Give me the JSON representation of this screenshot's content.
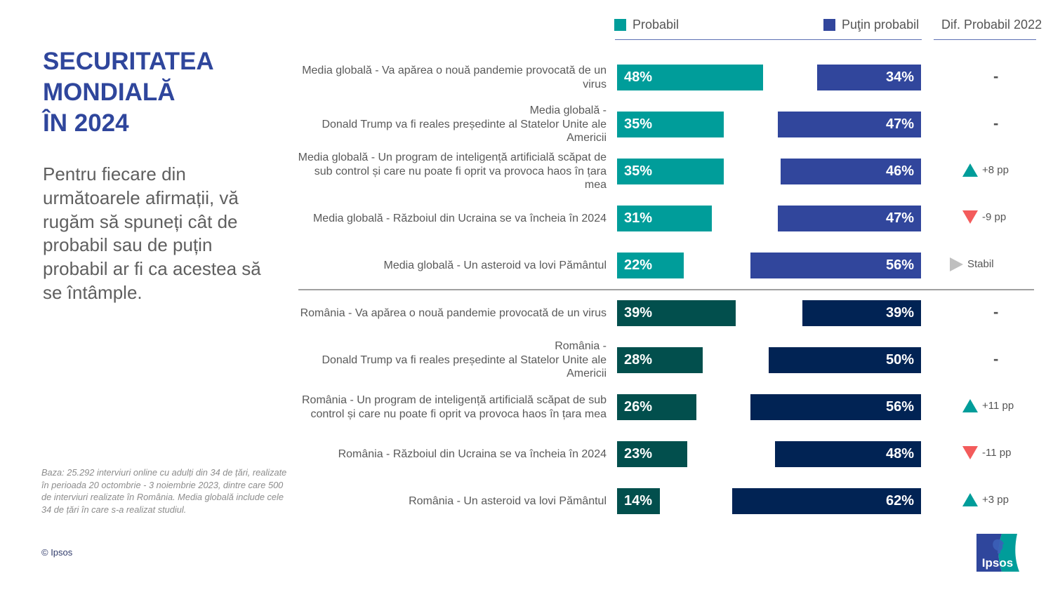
{
  "title": "SECURITATEA\nMONDIALĂ\nÎN 2024",
  "subtitle": "Pentru fiecare din următoarele afirmații, vă rugăm să spuneți cât de probabil sau de puțin probabil ar fi ca acestea să se întâmple.",
  "base_note": "Baza: 25.292 interviuri online cu adulți din 34 de țări, realizate în perioada 20 octombrie - 3 noiembrie 2023, dintre care 500 de interviuri realizate în România. Media globală include cele 34 de țări în care s-a realizat studiul.",
  "copyright": "© Ipsos",
  "logo_text": "Ipsos",
  "colors": {
    "title": "#2f469c",
    "global_likely": "#009d9a",
    "global_unlikely": "#31469c",
    "romania_likely": "#024f4d",
    "romania_unlikely": "#012354",
    "up": "#009d9a",
    "down": "#f35b5b",
    "stable": "#bfbfbf"
  },
  "chart_data": {
    "type": "bar",
    "orientation": "horizontal",
    "legend": [
      "Probabil",
      "Puţin probabil"
    ],
    "diff_header": "Dif. Probabil 2022",
    "legend_position": "top",
    "unit": "%",
    "categories": [
      "Media globală - Va apărea o nouă pandemie provocată de un virus",
      "Media globală -\nDonald Trump va fi reales președinte al Statelor Unite ale Americii",
      "Media globală - Un program de inteligență artificială scăpat de sub control și care nu poate fi oprit va provoca haos în țara mea",
      "Media globală - Războiul din Ucraina se va încheia în 2024",
      "Media globală - Un asteroid va lovi Pământul",
      "România - Va apărea o nouă pandemie provocată de un virus",
      "România -\nDonald Trump va fi reales președinte al Statelor Unite ale Americii",
      "România - Un program de inteligență artificială scăpat de sub control și care nu poate fi oprit va provoca haos în țara mea",
      "România - Războiul din Ucraina se va încheia în  2024",
      "România - Un asteroid va lovi Pământul"
    ],
    "groups": [
      "global",
      "global",
      "global",
      "global",
      "global",
      "romania",
      "romania",
      "romania",
      "romania",
      "romania"
    ],
    "series": [
      {
        "name": "Probabil",
        "values": [
          48,
          35,
          35,
          31,
          22,
          39,
          28,
          26,
          23,
          14
        ]
      },
      {
        "name": "Puţin probabil",
        "values": [
          34,
          47,
          46,
          47,
          56,
          39,
          50,
          56,
          48,
          62
        ]
      }
    ],
    "diff_2022": [
      {
        "type": "none",
        "label": "-"
      },
      {
        "type": "none",
        "label": "-"
      },
      {
        "type": "up",
        "label": "+8 pp"
      },
      {
        "type": "down",
        "label": "-9 pp"
      },
      {
        "type": "stable",
        "label": "Stabil"
      },
      {
        "type": "none",
        "label": "-"
      },
      {
        "type": "none",
        "label": "-"
      },
      {
        "type": "up",
        "label": "+11 pp"
      },
      {
        "type": "down",
        "label": "-11 pp"
      },
      {
        "type": "up",
        "label": "+3 pp"
      }
    ],
    "xlim": [
      0,
      100
    ]
  }
}
